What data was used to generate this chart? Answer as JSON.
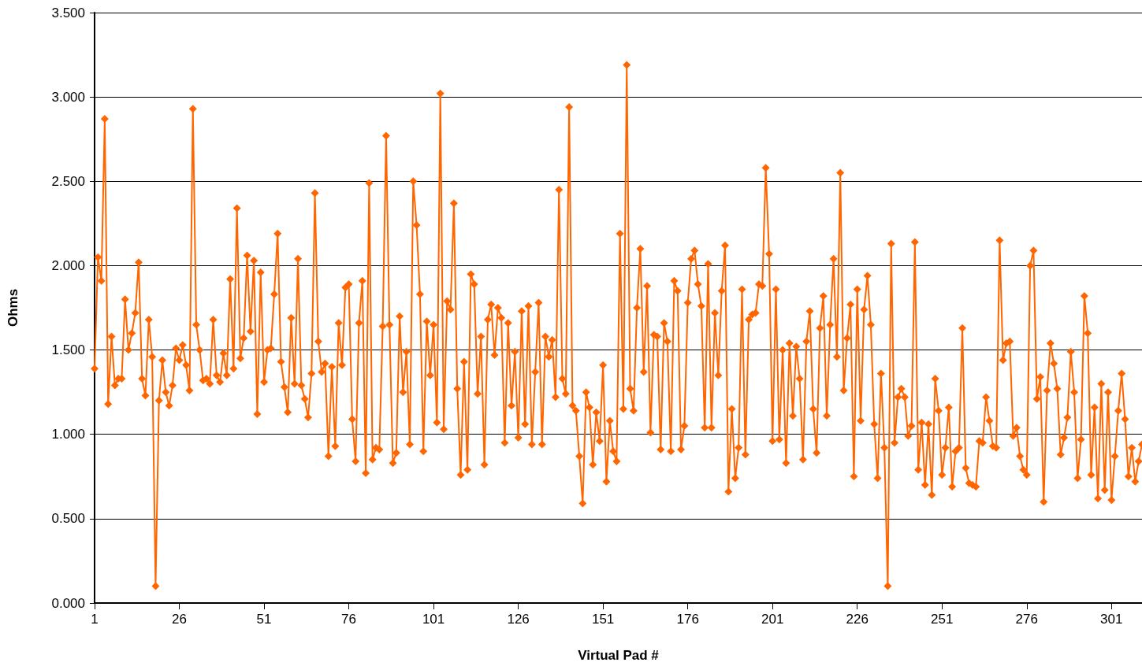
{
  "chart_data": {
    "type": "line",
    "xlabel": "Virtual Pad #",
    "ylabel": "Ohms",
    "marker": "diamond",
    "grid": "y",
    "x": [
      1,
      2,
      3,
      4,
      5,
      6,
      7,
      8,
      9,
      10,
      11,
      12,
      13,
      14,
      15,
      16,
      17,
      18,
      19,
      20,
      21,
      22,
      23,
      24,
      25,
      26,
      27,
      28,
      29,
      30,
      31,
      32,
      33,
      34,
      35,
      36,
      37,
      38,
      39,
      40,
      41,
      42,
      43,
      44,
      45,
      46,
      47,
      48,
      49,
      50,
      51,
      52,
      53,
      54,
      55,
      56,
      57,
      58,
      59,
      60,
      61,
      62,
      63,
      64,
      65,
      66,
      67,
      68,
      69,
      70,
      71,
      72,
      73,
      74,
      75,
      76,
      77,
      78,
      79,
      80,
      81,
      82,
      83,
      84,
      85,
      86,
      87,
      88,
      89,
      90,
      91,
      92,
      93,
      94,
      95,
      96,
      97,
      98,
      99,
      100,
      101,
      102,
      103,
      104,
      105,
      106,
      107,
      108,
      109,
      110,
      111,
      112,
      113,
      114,
      115,
      116,
      117,
      118,
      119,
      120,
      121,
      122,
      123,
      124,
      125,
      126,
      127,
      128,
      129,
      130,
      131,
      132,
      133,
      134,
      135,
      136,
      137,
      138,
      139,
      140,
      141,
      142,
      143,
      144,
      145,
      146,
      147,
      148,
      149,
      150,
      151,
      152,
      153,
      154,
      155,
      156,
      157,
      158,
      159,
      160,
      161,
      162,
      163,
      164,
      165,
      166,
      167,
      168,
      169,
      170,
      171,
      172,
      173,
      174,
      175,
      176,
      177,
      178,
      179,
      180,
      181,
      182,
      183,
      184,
      185,
      186,
      187,
      188,
      189,
      190,
      191,
      192,
      193,
      194,
      195,
      196,
      197,
      198,
      199,
      200,
      201,
      202,
      203,
      204,
      205,
      206,
      207,
      208,
      209,
      210,
      211,
      212,
      213,
      214,
      215,
      216,
      217,
      218,
      219,
      220,
      221,
      222,
      223,
      224,
      225,
      226,
      227,
      228,
      229,
      230,
      231,
      232,
      233,
      234,
      235,
      236,
      237,
      238,
      239,
      240,
      241,
      242,
      243,
      244,
      245,
      246,
      247,
      248,
      249,
      250,
      251,
      252,
      253,
      254,
      255,
      256,
      257,
      258,
      259,
      260,
      261,
      262,
      263,
      264,
      265,
      266,
      267,
      268,
      269,
      270,
      271,
      272,
      273,
      274,
      275,
      276,
      277,
      278,
      279,
      280,
      281,
      282,
      283,
      284,
      285,
      286,
      287,
      288,
      289,
      290,
      291,
      292,
      293,
      294,
      295,
      296,
      297,
      298,
      299,
      300,
      301,
      302,
      303,
      304,
      305,
      306,
      307,
      308,
      309,
      310
    ],
    "series": [
      {
        "color": "#ff6600",
        "values": [
          1.39,
          2.05,
          1.91,
          2.87,
          1.18,
          1.58,
          1.29,
          1.33,
          1.33,
          1.8,
          1.5,
          1.6,
          1.72,
          2.02,
          1.33,
          1.23,
          1.68,
          1.46,
          0.1,
          1.2,
          1.44,
          1.25,
          1.17,
          1.29,
          1.51,
          1.44,
          1.53,
          1.41,
          1.26,
          2.93,
          1.65,
          1.5,
          1.32,
          1.33,
          1.3,
          1.68,
          1.35,
          1.31,
          1.48,
          1.35,
          1.92,
          1.39,
          2.34,
          1.45,
          1.57,
          2.06,
          1.61,
          2.03,
          1.12,
          1.96,
          1.31,
          1.5,
          1.51,
          1.83,
          2.19,
          1.43,
          1.28,
          1.13,
          1.69,
          1.3,
          2.04,
          1.29,
          1.21,
          1.1,
          1.36,
          2.43,
          1.55,
          1.37,
          1.42,
          0.87,
          1.4,
          0.93,
          1.66,
          1.41,
          1.87,
          1.89,
          1.09,
          0.84,
          1.66,
          1.91,
          0.77,
          2.49,
          0.85,
          0.92,
          0.91,
          1.64,
          2.77,
          1.65,
          0.83,
          0.89,
          1.7,
          1.25,
          1.49,
          0.94,
          2.5,
          2.24,
          1.83,
          0.9,
          1.67,
          1.35,
          1.65,
          1.07,
          3.02,
          1.03,
          1.79,
          1.74,
          2.37,
          1.27,
          0.76,
          1.43,
          0.79,
          1.95,
          1.89,
          1.24,
          1.58,
          0.82,
          1.68,
          1.77,
          1.47,
          1.75,
          1.69,
          0.95,
          1.66,
          1.17,
          1.49,
          0.98,
          1.73,
          1.06,
          1.76,
          0.94,
          1.37,
          1.78,
          0.94,
          1.58,
          1.46,
          1.56,
          1.22,
          2.45,
          1.33,
          1.24,
          2.94,
          1.17,
          1.14,
          0.87,
          0.59,
          1.25,
          1.16,
          0.82,
          1.13,
          0.96,
          1.41,
          0.72,
          1.08,
          0.9,
          0.84,
          2.19,
          1.15,
          3.19,
          1.27,
          1.14,
          1.75,
          2.1,
          1.37,
          1.88,
          1.01,
          1.59,
          1.58,
          0.91,
          1.66,
          1.55,
          0.9,
          1.91,
          1.85,
          0.91,
          1.05,
          1.78,
          2.04,
          2.09,
          1.89,
          1.76,
          1.04,
          2.01,
          1.04,
          1.72,
          1.35,
          1.85,
          2.12,
          0.66,
          1.15,
          0.74,
          0.92,
          1.86,
          0.88,
          1.68,
          1.71,
          1.72,
          1.89,
          1.88,
          2.58,
          2.07,
          0.96,
          1.86,
          0.97,
          1.5,
          0.83,
          1.54,
          1.11,
          1.52,
          1.33,
          0.85,
          1.55,
          1.73,
          1.15,
          0.89,
          1.63,
          1.82,
          1.11,
          1.65,
          2.04,
          1.46,
          2.55,
          1.26,
          1.57,
          1.77,
          0.75,
          1.86,
          1.08,
          1.74,
          1.94,
          1.65,
          1.06,
          0.74,
          1.36,
          0.92,
          0.1,
          2.13,
          0.95,
          1.22,
          1.27,
          1.22,
          0.99,
          1.05,
          2.14,
          0.79,
          1.07,
          0.7,
          1.06,
          0.64,
          1.33,
          1.14,
          0.76,
          0.92,
          1.16,
          0.69,
          0.9,
          0.92,
          1.63,
          0.8,
          0.71,
          0.7,
          0.69,
          0.96,
          0.95,
          1.22,
          1.08,
          0.93,
          0.92,
          2.15,
          1.44,
          1.54,
          1.55,
          0.99,
          1.04,
          0.87,
          0.79,
          0.76,
          2.0,
          2.09,
          1.21,
          1.34,
          0.6,
          1.26,
          1.54,
          1.42,
          1.27,
          0.88,
          0.98,
          1.1,
          1.49,
          1.25,
          0.74,
          0.97,
          1.82,
          1.6,
          0.76,
          1.16,
          0.62,
          1.3,
          0.67,
          1.25,
          0.61,
          0.87,
          1.14,
          1.36,
          1.09,
          0.75,
          0.92,
          0.72,
          0.84,
          0.94
        ]
      }
    ],
    "xlim": [
      1,
      310
    ],
    "xticks": [
      1,
      26,
      51,
      76,
      101,
      126,
      151,
      176,
      201,
      226,
      251,
      276,
      301
    ],
    "ylim": [
      0,
      3.5
    ],
    "yticks": [
      {
        "value": 0,
        "label": "0.000"
      },
      {
        "value": 0.5,
        "label": "0.500"
      },
      {
        "value": 1,
        "label": "1.000"
      },
      {
        "value": 1.5,
        "label": "1.500"
      },
      {
        "value": 2,
        "label": "2.000"
      },
      {
        "value": 2.5,
        "label": "2.500"
      },
      {
        "value": 3,
        "label": "3.000"
      },
      {
        "value": 3.5,
        "label": "3.500"
      }
    ]
  }
}
